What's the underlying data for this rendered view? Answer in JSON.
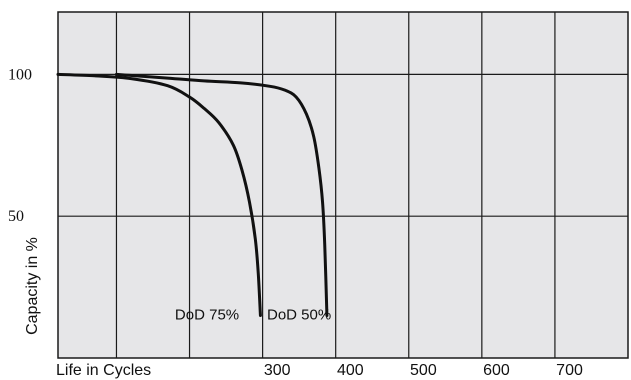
{
  "chart_data": {
    "type": "line",
    "title": "",
    "xlabel": "Life in Cycles",
    "ylabel": "Capacity in %",
    "xlim": [
      0,
      780
    ],
    "ylim": [
      0,
      122
    ],
    "x_ticks": [
      300,
      400,
      500,
      600,
      700
    ],
    "y_ticks": [
      100,
      50
    ],
    "x_gridlines": [
      80,
      180,
      280,
      380,
      480,
      580,
      680
    ],
    "y_gridlines": [
      50,
      100
    ],
    "grid": true,
    "legend": "none",
    "background": "#e6e6e8",
    "line_color": "#111111",
    "series": [
      {
        "name": "DoD 75%",
        "x": [
          0,
          50,
          100,
          150,
          180,
          200,
          220,
          240,
          252,
          262,
          270,
          274,
          277
        ],
        "y": [
          100,
          99.5,
          98.5,
          96,
          92,
          88,
          83,
          75,
          66,
          55,
          42,
          30,
          15
        ]
      },
      {
        "name": "DoD 50%",
        "x": [
          80,
          150,
          200,
          250,
          290,
          310,
          326,
          340,
          350,
          357,
          362,
          365,
          368
        ],
        "y": [
          100,
          98.7,
          97.7,
          97,
          95.8,
          94.5,
          92,
          86,
          78,
          67,
          55,
          40,
          15
        ]
      }
    ],
    "annotations": [
      {
        "text": "DoD 75%",
        "x": 160,
        "y": 15
      },
      {
        "text": "DoD 50%",
        "x": 286,
        "y": 15
      }
    ]
  }
}
